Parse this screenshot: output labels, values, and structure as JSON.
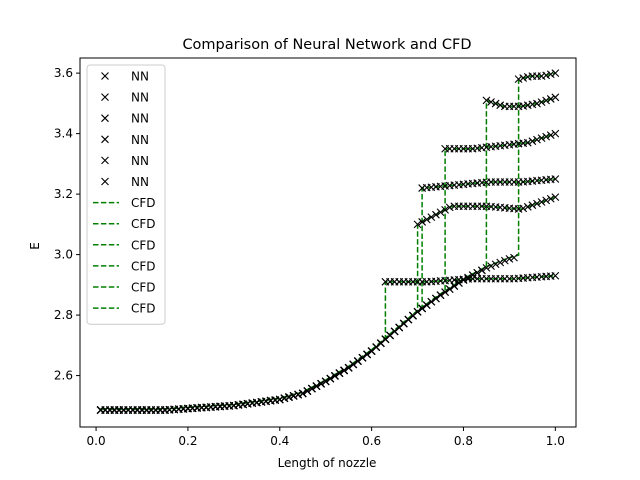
{
  "chart_data": {
    "type": "line",
    "title": "Comparison of Neural Network and CFD",
    "xlabel": "Length of nozzle",
    "ylabel": "E",
    "xlim": [
      -0.035,
      1.045
    ],
    "ylim": [
      2.43,
      3.65
    ],
    "xticks": [
      0.0,
      0.2,
      0.4,
      0.6,
      0.8,
      1.0
    ],
    "xtick_labels": [
      "0.0",
      "0.2",
      "0.4",
      "0.6",
      "0.8",
      "1.0"
    ],
    "yticks": [
      2.6,
      2.8,
      3.0,
      3.2,
      3.4,
      3.6
    ],
    "ytick_labels": [
      "2.6",
      "2.8",
      "3.0",
      "3.2",
      "3.4",
      "3.6"
    ],
    "grid": false,
    "legend_position": "top-left",
    "legend": [
      {
        "label": "NN",
        "style": "marker-x",
        "color": "#000000"
      },
      {
        "label": "NN",
        "style": "marker-x",
        "color": "#000000"
      },
      {
        "label": "NN",
        "style": "marker-x",
        "color": "#000000"
      },
      {
        "label": "NN",
        "style": "marker-x",
        "color": "#000000"
      },
      {
        "label": "NN",
        "style": "marker-x",
        "color": "#000000"
      },
      {
        "label": "NN",
        "style": "marker-x",
        "color": "#000000"
      },
      {
        "label": "CFD",
        "style": "dashed-line",
        "color": "#008000"
      },
      {
        "label": "CFD",
        "style": "dashed-line",
        "color": "#008000"
      },
      {
        "label": "CFD",
        "style": "dashed-line",
        "color": "#008000"
      },
      {
        "label": "CFD",
        "style": "dashed-line",
        "color": "#008000"
      },
      {
        "label": "CFD",
        "style": "dashed-line",
        "color": "#008000"
      },
      {
        "label": "CFD",
        "style": "dashed-line",
        "color": "#008000"
      }
    ],
    "colors": {
      "nn": "#000000",
      "cfd": "#008000"
    },
    "x": [
      0.0,
      0.05,
      0.1,
      0.15,
      0.2,
      0.25,
      0.3,
      0.35,
      0.4,
      0.45,
      0.5,
      0.55,
      0.6,
      0.65,
      0.7,
      0.75,
      0.8,
      0.85,
      0.9,
      0.95,
      1.0
    ],
    "base_curve": [
      2.49,
      2.49,
      2.49,
      2.49,
      2.495,
      2.5,
      2.505,
      2.515,
      2.525,
      2.545,
      2.585,
      2.63,
      2.685,
      2.75,
      2.815,
      2.87,
      2.92,
      2.96,
      2.99,
      3.01,
      3.03
    ],
    "series": [
      {
        "shock_x": 0.63,
        "post_shock": [
          2.91,
          2.91,
          2.92,
          2.92,
          2.93
        ]
      },
      {
        "shock_x": 0.7,
        "post_shock": [
          3.1,
          3.16,
          3.16,
          3.15,
          3.19
        ]
      },
      {
        "shock_x": 0.71,
        "post_shock": [
          3.22,
          3.23,
          3.24,
          3.24,
          3.25
        ]
      },
      {
        "shock_x": 0.76,
        "post_shock": [
          3.35,
          3.35,
          3.36,
          3.37,
          3.4
        ]
      },
      {
        "shock_x": 0.85,
        "post_shock": [
          3.51,
          3.49,
          3.49,
          3.5,
          3.52
        ]
      },
      {
        "shock_x": 0.92,
        "post_shock": [
          3.58,
          3.59,
          3.59,
          3.6
        ]
      }
    ]
  }
}
